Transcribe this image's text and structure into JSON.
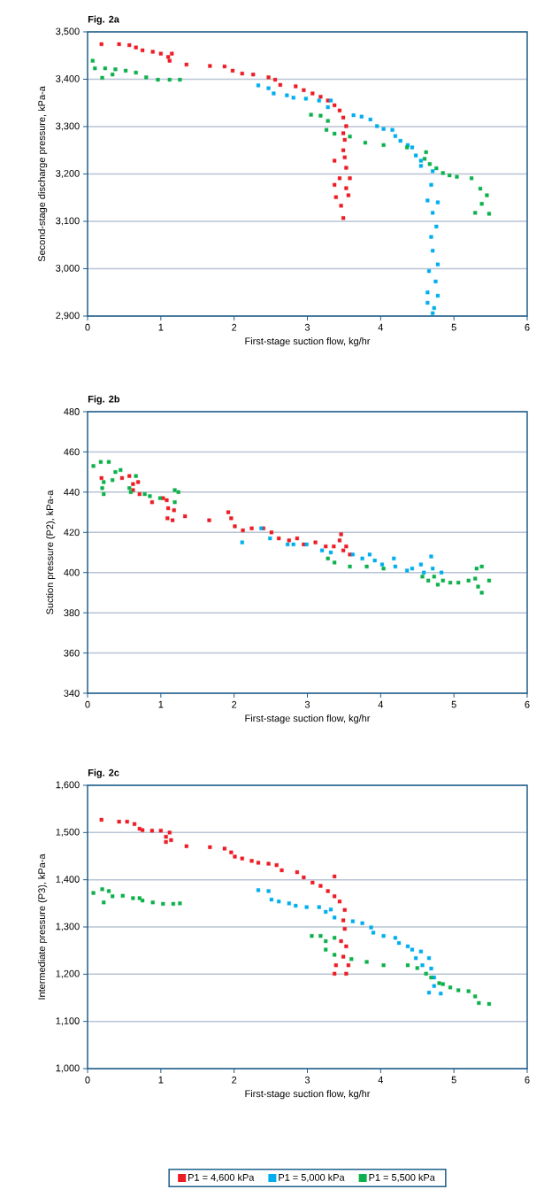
{
  "chart_data": [
    {
      "type": "scatter",
      "title": "Fig. 2a",
      "xlabel": "First-stage suction flow, kg/hr",
      "ylabel": "Second-stage discharge pressure, kPa-a",
      "xlim": [
        0,
        6
      ],
      "xticks": [
        0,
        1,
        2,
        3,
        4,
        5,
        6
      ],
      "ylim": [
        2900,
        3500
      ],
      "yticks": [
        {
          "value": 2900,
          "label": "2,900"
        },
        {
          "value": 3000,
          "label": "3,000"
        },
        {
          "value": 3100,
          "label": "3,100"
        },
        {
          "value": 3200,
          "label": "3,200"
        },
        {
          "value": 3300,
          "label": "3,300"
        },
        {
          "value": 3400,
          "label": "3,400"
        },
        {
          "value": 3500,
          "label": "3,500"
        }
      ],
      "grid": "y",
      "marker": "square",
      "series": [
        {
          "color": "#ed1c24",
          "x": [
            0.19,
            0.43,
            0.57,
            0.66,
            0.75,
            0.89,
            1.0,
            1.1,
            1.12,
            1.15,
            1.35,
            1.67,
            1.87,
            1.98,
            2.11,
            2.26,
            2.47,
            2.56,
            2.63,
            2.84,
            2.95,
            3.07,
            3.18,
            3.28,
            3.37,
            3.44,
            3.49,
            3.53,
            3.49,
            3.51,
            3.49,
            3.37,
            3.51,
            3.53,
            3.44,
            3.58,
            3.37,
            3.53,
            3.39,
            3.56,
            3.46,
            3.49
          ],
          "values": [
            3474,
            3474,
            3472,
            3467,
            3461,
            3458,
            3454,
            3447,
            3439,
            3454,
            3431,
            3428,
            3427,
            3418,
            3412,
            3410,
            3404,
            3399,
            3388,
            3385,
            3377,
            3370,
            3363,
            3355,
            3345,
            3334,
            3319,
            3301,
            3286,
            3272,
            3250,
            3228,
            3235,
            3213,
            3191,
            3191,
            3177,
            3170,
            3151,
            3155,
            3133,
            3107
          ]
        },
        {
          "color": "#00aeef",
          "x": [
            2.33,
            2.47,
            2.54,
            2.72,
            2.81,
            2.98,
            3.16,
            3.28,
            3.32,
            3.63,
            3.74,
            3.86,
            3.95,
            4.04,
            4.16,
            4.2,
            4.27,
            4.37,
            4.43,
            4.48,
            4.55,
            4.55,
            4.71,
            4.69,
            4.64,
            4.78,
            4.71,
            4.76,
            4.69,
            4.71,
            4.78,
            4.66,
            4.75,
            4.64,
            4.78,
            4.64,
            4.73,
            4.71
          ],
          "values": [
            3387,
            3381,
            3370,
            3366,
            3361,
            3359,
            3355,
            3341,
            3355,
            3324,
            3321,
            3315,
            3301,
            3295,
            3293,
            3280,
            3270,
            3261,
            3256,
            3239,
            3228,
            3217,
            3206,
            3177,
            3144,
            3140,
            3118,
            3089,
            3067,
            3038,
            3009,
            2995,
            2973,
            2950,
            2943,
            2928,
            2917,
            2906
          ]
        },
        {
          "color": "#0db14b",
          "x": [
            0.07,
            0.1,
            0.24,
            0.38,
            0.2,
            0.34,
            0.52,
            0.66,
            0.8,
            0.96,
            1.12,
            1.26,
            3.05,
            3.18,
            3.28,
            3.26,
            3.37,
            3.58,
            3.79,
            4.04,
            4.36,
            4.62,
            4.6,
            4.67,
            4.76,
            4.85,
            4.94,
            5.04,
            5.24,
            5.36,
            5.45,
            5.38,
            5.29,
            5.48
          ],
          "values": [
            3439,
            3423,
            3423,
            3421,
            3403,
            3410,
            3418,
            3414,
            3404,
            3399,
            3399,
            3399,
            3325,
            3323,
            3312,
            3293,
            3285,
            3279,
            3266,
            3261,
            3256,
            3246,
            3232,
            3221,
            3212,
            3202,
            3197,
            3194,
            3191,
            3169,
            3155,
            3137,
            3118,
            3116
          ]
        }
      ]
    },
    {
      "type": "scatter",
      "title": "Fig. 2b",
      "xlabel": "First-stage suction flow, kg/hr",
      "ylabel": "Suction pressure (P2), kPa-a",
      "xlim": [
        0,
        6
      ],
      "xticks": [
        0,
        1,
        2,
        3,
        4,
        5,
        6
      ],
      "ylim": [
        340,
        480
      ],
      "yticks": [
        340,
        360,
        380,
        400,
        420,
        440,
        460,
        480
      ],
      "grid": "y",
      "marker": "square",
      "series": [
        {
          "color": "#ed1c24",
          "x": [
            0.19,
            0.47,
            0.57,
            0.62,
            0.69,
            0.62,
            0.71,
            0.88,
            1.03,
            1.08,
            1.1,
            1.18,
            1.09,
            1.16,
            1.33,
            1.66,
            1.92,
            1.96,
            2.01,
            2.12,
            2.24,
            2.4,
            2.51,
            2.61,
            2.75,
            2.86,
            2.95,
            3.11,
            3.25,
            3.36,
            3.46,
            3.44,
            3.49,
            3.58,
            3.53
          ],
          "values": [
            447,
            447,
            448,
            444,
            445,
            441,
            439,
            435,
            437,
            436,
            432,
            431,
            427,
            426,
            428,
            426,
            430,
            427,
            423,
            421,
            422,
            422,
            420,
            417,
            416,
            417,
            414,
            415,
            413,
            413,
            419,
            416,
            411,
            409,
            413
          ]
        },
        {
          "color": "#00aeef",
          "x": [
            2.11,
            2.37,
            2.49,
            2.73,
            2.81,
            2.99,
            3.2,
            3.32,
            3.62,
            3.75,
            3.85,
            3.92,
            4.02,
            4.18,
            4.2,
            4.36,
            4.43,
            4.55,
            4.59,
            4.69,
            4.71,
            4.83
          ],
          "values": [
            415,
            422,
            417,
            414,
            414,
            414,
            411,
            410,
            409,
            407,
            409,
            406,
            404,
            407,
            403,
            401,
            402,
            404,
            400,
            408,
            402,
            400
          ]
        },
        {
          "color": "#0db14b",
          "x": [
            0.08,
            0.18,
            0.29,
            0.38,
            0.45,
            0.34,
            0.2,
            0.22,
            0.22,
            0.57,
            0.59,
            0.66,
            0.78,
            0.85,
            0.99,
            1.19,
            1.24,
            1.19,
            3.28,
            3.37,
            3.58,
            3.81,
            4.04,
            4.57,
            4.65,
            4.73,
            4.78,
            4.85,
            4.95,
            5.06,
            5.2,
            5.29,
            5.38,
            5.31,
            5.38,
            5.48,
            5.33
          ],
          "values": [
            453,
            455,
            455,
            450,
            451,
            446,
            442,
            439,
            445,
            442,
            440,
            448,
            439,
            438,
            437,
            441,
            440,
            435,
            407,
            405,
            403,
            403,
            402,
            398,
            396,
            398,
            394,
            396,
            395,
            395,
            396,
            397,
            403,
            402,
            390,
            396,
            393
          ]
        }
      ]
    },
    {
      "type": "scatter",
      "title": "Fig. 2c",
      "xlabel": "First-stage suction flow, kg/hr",
      "ylabel": "Intermediate pressure (P3), kPa-a",
      "xlim": [
        0,
        6
      ],
      "xticks": [
        0,
        1,
        2,
        3,
        4,
        5,
        6
      ],
      "ylim": [
        1000,
        1600
      ],
      "yticks": [
        {
          "value": 1000,
          "label": "1,000"
        },
        {
          "value": 1100,
          "label": "1,100"
        },
        {
          "value": 1200,
          "label": "1,200"
        },
        {
          "value": 1300,
          "label": "1,300"
        },
        {
          "value": 1400,
          "label": "1,400"
        },
        {
          "value": 1500,
          "label": "1,500"
        },
        {
          "value": 1600,
          "label": "1,600"
        }
      ],
      "grid": "y",
      "marker": "square",
      "legend": "bottom",
      "series": [
        {
          "name": "P1 = 4,600 kPa",
          "color": "#ed1c24",
          "x": [
            0.19,
            0.43,
            0.54,
            0.64,
            0.71,
            0.75,
            0.88,
            1.0,
            1.12,
            1.07,
            1.14,
            1.07,
            1.35,
            1.67,
            1.87,
            1.96,
            2.01,
            2.11,
            2.24,
            2.33,
            2.47,
            2.58,
            2.65,
            2.86,
            2.95,
            3.07,
            3.18,
            3.28,
            3.37,
            3.37,
            3.44,
            3.51,
            3.49,
            3.51,
            3.46,
            3.53,
            3.49,
            3.39,
            3.56,
            3.37,
            3.53
          ],
          "values": [
            1527,
            1523,
            1523,
            1518,
            1508,
            1505,
            1504,
            1504,
            1500,
            1491,
            1484,
            1480,
            1471,
            1469,
            1466,
            1458,
            1449,
            1445,
            1440,
            1436,
            1434,
            1431,
            1420,
            1416,
            1405,
            1394,
            1387,
            1376,
            1407,
            1365,
            1354,
            1336,
            1314,
            1296,
            1270,
            1259,
            1237,
            1219,
            1219,
            1201,
            1201
          ]
        },
        {
          "name": "P1 = 5,000 kPa",
          "color": "#00aeef",
          "x": [
            2.33,
            2.47,
            2.51,
            2.61,
            2.75,
            2.84,
            2.99,
            3.16,
            3.25,
            3.32,
            3.37,
            3.62,
            3.75,
            3.87,
            3.9,
            4.04,
            4.2,
            4.25,
            4.37,
            4.43,
            4.55,
            4.48,
            4.66,
            4.57,
            4.69,
            4.73,
            4.73,
            4.66,
            4.82
          ],
          "values": [
            1378,
            1376,
            1358,
            1354,
            1350,
            1345,
            1342,
            1342,
            1332,
            1337,
            1320,
            1312,
            1308,
            1299,
            1288,
            1281,
            1277,
            1266,
            1259,
            1252,
            1248,
            1234,
            1234,
            1219,
            1212,
            1193,
            1175,
            1161,
            1159
          ]
        },
        {
          "name": "P1 = 5,500 kPa",
          "color": "#0db14b",
          "x": [
            0.08,
            0.2,
            0.29,
            0.22,
            0.34,
            0.48,
            0.62,
            0.71,
            0.75,
            0.89,
            1.03,
            1.17,
            1.26,
            3.06,
            3.18,
            3.25,
            3.25,
            3.37,
            3.37,
            3.6,
            3.81,
            4.04,
            4.37,
            4.5,
            4.62,
            4.69,
            4.8,
            4.85,
            4.95,
            5.06,
            5.2,
            5.29,
            5.34,
            5.48
          ],
          "values": [
            1372,
            1380,
            1376,
            1352,
            1365,
            1366,
            1361,
            1361,
            1356,
            1352,
            1349,
            1349,
            1350,
            1281,
            1281,
            1270,
            1252,
            1277,
            1241,
            1232,
            1226,
            1219,
            1219,
            1213,
            1201,
            1193,
            1181,
            1179,
            1172,
            1166,
            1164,
            1153,
            1139,
            1137
          ]
        }
      ]
    }
  ]
}
